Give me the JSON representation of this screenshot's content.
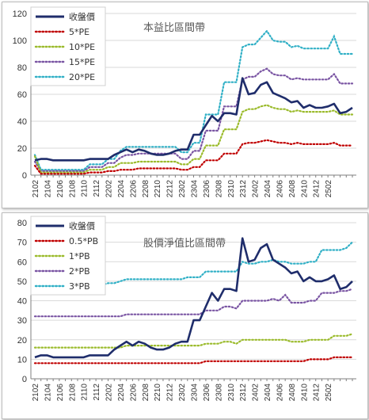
{
  "colors": {
    "price": "#1f2d6b",
    "band1": "#c00000",
    "band2": "#9bbb2c",
    "band3": "#7a55a3",
    "band4": "#31b0c6"
  },
  "chart_data": [
    {
      "type": "line",
      "title": "本益比區間帶",
      "ylim": [
        0,
        120
      ],
      "yticks": [
        0,
        20,
        40,
        60,
        80,
        100,
        120
      ],
      "xtick_labels": [
        "2102",
        "2104",
        "2106",
        "2108",
        "2110",
        "2112",
        "2202",
        "2204",
        "2206",
        "2208",
        "2210",
        "2212",
        "2302",
        "2304",
        "2306",
        "2308",
        "2310",
        "2312",
        "2402",
        "2404",
        "2406",
        "2408",
        "2410",
        "2412",
        "2502"
      ],
      "legend_position": "top-left",
      "grid": true,
      "series": [
        {
          "name": "收盤價",
          "values": [
            11,
            12,
            12,
            11,
            11,
            11,
            11,
            11,
            11,
            12,
            12,
            12,
            12,
            15,
            17,
            19,
            17,
            19,
            18,
            16,
            15,
            15,
            16,
            18,
            19,
            19,
            30,
            30,
            37,
            44,
            40,
            46,
            46,
            45,
            72,
            60,
            61,
            67,
            69,
            61,
            59,
            57,
            54,
            55,
            50,
            52,
            50,
            50,
            51,
            53,
            46,
            47,
            50
          ]
        },
        {
          "name": "5*PE",
          "values": [
            7,
            1,
            1,
            1,
            1,
            1,
            1,
            1,
            1,
            2,
            2,
            2,
            3,
            3,
            4,
            4,
            4,
            5,
            5,
            5,
            5,
            5,
            5,
            5,
            4,
            4,
            6,
            6,
            11,
            11,
            11,
            16,
            16,
            16,
            23,
            24,
            24,
            25,
            26,
            25,
            24,
            24,
            23,
            24,
            23,
            23,
            23,
            23,
            23,
            24,
            22,
            22,
            22
          ]
        },
        {
          "name": "10*PE",
          "values": [
            14,
            2,
            2,
            2,
            2,
            2,
            2,
            2,
            2,
            4,
            4,
            4,
            6,
            6,
            9,
            9,
            9,
            10,
            10,
            10,
            10,
            10,
            10,
            10,
            8,
            8,
            12,
            12,
            22,
            22,
            22,
            34,
            34,
            34,
            47,
            49,
            49,
            51,
            52,
            50,
            49,
            49,
            47,
            48,
            47,
            47,
            47,
            47,
            47,
            48,
            45,
            45,
            45
          ]
        },
        {
          "name": "15*PE",
          "values": [
            10,
            3,
            3,
            3,
            3,
            3,
            3,
            3,
            3,
            6,
            6,
            6,
            9,
            9,
            13,
            15,
            15,
            16,
            16,
            16,
            16,
            16,
            16,
            16,
            12,
            12,
            18,
            18,
            33,
            33,
            33,
            51,
            51,
            51,
            71,
            73,
            73,
            77,
            79,
            75,
            74,
            74,
            71,
            72,
            71,
            71,
            71,
            71,
            71,
            75,
            68,
            68,
            68
          ]
        },
        {
          "name": "20*PE",
          "values": [
            15,
            4,
            4,
            4,
            4,
            4,
            4,
            4,
            4,
            8,
            8,
            8,
            12,
            12,
            18,
            21,
            21,
            21,
            21,
            21,
            21,
            21,
            21,
            21,
            17,
            17,
            24,
            24,
            45,
            45,
            45,
            69,
            69,
            69,
            95,
            97,
            97,
            102,
            107,
            100,
            99,
            99,
            95,
            96,
            94,
            94,
            94,
            94,
            94,
            103,
            90,
            90,
            90
          ]
        }
      ]
    },
    {
      "type": "line",
      "title": "股價淨值比區間帶",
      "ylim": [
        0,
        80
      ],
      "yticks": [
        0,
        10,
        20,
        30,
        40,
        50,
        60,
        70,
        80
      ],
      "xtick_labels": [
        "2102",
        "2104",
        "2106",
        "2108",
        "2110",
        "2112",
        "2202",
        "2204",
        "2206",
        "2208",
        "2210",
        "2212",
        "2302",
        "2304",
        "2306",
        "2308",
        "2310",
        "2312",
        "2402",
        "2404",
        "2406",
        "2408",
        "2410",
        "2412",
        "2502"
      ],
      "legend_position": "top-left",
      "grid": true,
      "series": [
        {
          "name": "收盤價",
          "values": [
            11,
            12,
            12,
            11,
            11,
            11,
            11,
            11,
            11,
            12,
            12,
            12,
            12,
            15,
            17,
            19,
            17,
            19,
            18,
            16,
            15,
            15,
            16,
            18,
            19,
            19,
            30,
            30,
            37,
            44,
            40,
            46,
            46,
            45,
            72,
            60,
            61,
            67,
            69,
            61,
            59,
            57,
            54,
            55,
            50,
            52,
            50,
            50,
            51,
            53,
            46,
            47,
            50
          ]
        },
        {
          "name": "0.5*PB",
          "values": [
            8,
            8,
            8,
            8,
            8,
            8,
            8,
            8,
            8,
            8,
            8,
            8,
            8,
            8,
            8,
            8,
            8,
            8,
            8,
            8,
            8,
            8,
            8,
            8,
            8,
            8,
            8,
            8,
            9,
            9,
            9,
            9,
            9,
            9,
            9,
            9,
            9,
            9,
            9,
            9,
            9,
            9,
            9,
            9,
            9,
            10,
            10,
            10,
            10,
            11,
            11,
            11,
            11
          ]
        },
        {
          "name": "1*PB",
          "values": [
            16,
            16,
            16,
            16,
            16,
            16,
            16,
            16,
            16,
            16,
            16,
            16,
            16,
            16,
            16,
            17,
            17,
            17,
            17,
            17,
            17,
            17,
            17,
            17,
            17,
            17,
            17,
            17,
            18,
            18,
            18,
            19,
            19,
            18,
            20,
            20,
            20,
            20,
            20,
            20,
            20,
            20,
            19,
            19,
            19,
            20,
            20,
            20,
            20,
            22,
            22,
            22,
            23
          ]
        },
        {
          "name": "2*PB",
          "values": [
            32,
            32,
            32,
            32,
            32,
            32,
            32,
            32,
            32,
            32,
            32,
            32,
            32,
            32,
            32,
            33,
            33,
            33,
            33,
            33,
            33,
            33,
            33,
            33,
            33,
            33,
            33,
            33,
            35,
            35,
            35,
            37,
            37,
            36,
            40,
            40,
            40,
            40,
            40,
            41,
            40,
            43,
            39,
            39,
            39,
            40,
            40,
            44,
            44,
            44,
            45,
            45,
            46
          ]
        },
        {
          "name": "3*PB",
          "values": [
            48,
            48,
            48,
            48,
            48,
            48,
            48,
            48,
            48,
            48,
            48,
            48,
            49,
            49,
            50,
            51,
            51,
            51,
            51,
            51,
            51,
            51,
            51,
            51,
            51,
            52,
            52,
            52,
            55,
            55,
            55,
            55,
            55,
            55,
            60,
            59,
            59,
            60,
            60,
            61,
            60,
            60,
            59,
            59,
            59,
            60,
            60,
            66,
            66,
            66,
            66,
            67,
            70
          ]
        }
      ]
    }
  ]
}
